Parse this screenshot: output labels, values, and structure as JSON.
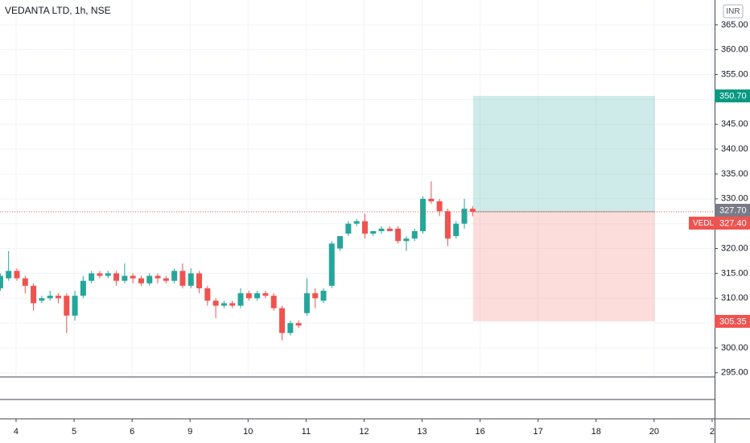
{
  "chart_data": {
    "type": "candlestick",
    "title": "VEDANTA LTD, 1h, NSE",
    "currency": "INR",
    "up_color": "#26a69a",
    "down_color": "#ef5350",
    "grid": true,
    "x": [
      -1,
      0,
      1,
      2,
      3,
      4,
      5,
      6,
      7,
      8,
      9,
      10,
      11,
      12,
      13,
      14,
      15,
      16,
      17,
      18,
      19,
      20,
      21,
      22,
      23,
      24,
      25,
      26,
      27,
      28,
      29,
      30,
      31,
      32,
      33,
      34,
      35,
      36,
      37,
      38,
      39,
      40,
      41,
      42,
      43,
      44,
      45,
      46,
      47,
      48,
      49,
      50,
      51,
      52,
      53,
      54,
      55,
      56
    ],
    "open": [
      312,
      314,
      315.5,
      314,
      312.5,
      309.5,
      310,
      310.5,
      310.5,
      306.5,
      310.5,
      313.5,
      315,
      314.5,
      315,
      313.5,
      314.5,
      314,
      313,
      314.5,
      314,
      313.5,
      315.5,
      312.5,
      315,
      312,
      309.5,
      308.5,
      309,
      308.5,
      311,
      310,
      311,
      310.5,
      308,
      303,
      305,
      307,
      311,
      309.5,
      312.5,
      320,
      323,
      325,
      325.5,
      323,
      323.5,
      324,
      324,
      321.5,
      322,
      323.5,
      330,
      329.5,
      327.5,
      322.5,
      325,
      328
    ],
    "high": [
      315,
      319.5,
      316,
      314.5,
      313,
      310.5,
      311.5,
      311,
      311,
      311.5,
      314.5,
      315.5,
      315.5,
      315.5,
      315.5,
      317,
      315,
      314.5,
      315,
      315,
      314.5,
      316,
      317,
      316,
      315.5,
      312.5,
      310,
      309.5,
      309.5,
      312,
      311.5,
      311.5,
      311.5,
      311,
      308.5,
      305.5,
      305.5,
      314,
      312,
      312,
      321.5,
      322.5,
      325.5,
      326,
      327,
      323.5,
      324.5,
      324.5,
      324.5,
      322.5,
      324,
      330.5,
      333.5,
      330,
      328,
      325.5,
      330,
      328.5
    ],
    "low": [
      311.5,
      313.5,
      313.5,
      311,
      307.5,
      309,
      309.5,
      309,
      303,
      305.5,
      310,
      313,
      314,
      314,
      312.5,
      313,
      313,
      312.5,
      312.5,
      313,
      313,
      313,
      312,
      312,
      311,
      308.5,
      306,
      308,
      308,
      308,
      309.5,
      309.5,
      310,
      307.5,
      301.5,
      302.5,
      304,
      306.5,
      308,
      309,
      312,
      319.5,
      322.5,
      324.5,
      322,
      322.5,
      323,
      323.5,
      321,
      319.5,
      321.5,
      323,
      329,
      326.5,
      320.5,
      322,
      324,
      326.5
    ],
    "close": [
      314.5,
      315.5,
      314,
      312.5,
      309,
      310,
      310.5,
      310,
      306.5,
      310.5,
      313.5,
      315,
      314.5,
      315,
      313.5,
      314.5,
      314,
      313,
      314.5,
      314,
      313.5,
      315.5,
      312.5,
      315,
      312,
      309.5,
      308.5,
      309,
      308.5,
      311,
      310,
      311,
      310.5,
      308,
      303,
      305,
      304.5,
      311,
      310,
      311.5,
      321,
      322.5,
      325,
      325.5,
      323,
      323.5,
      324,
      323.5,
      321.5,
      322,
      323.5,
      330,
      329.5,
      327.5,
      322,
      325,
      328,
      327.4
    ],
    "xlim": [
      -1.04,
      85.2
    ],
    "xticks": [
      {
        "value": 0.9,
        "label": "4"
      },
      {
        "value": 7.9,
        "label": "5"
      },
      {
        "value": 14.9,
        "label": "6"
      },
      {
        "value": 21.9,
        "label": "9"
      },
      {
        "value": 28.9,
        "label": "10"
      },
      {
        "value": 35.9,
        "label": "11"
      },
      {
        "value": 42.9,
        "label": "12"
      },
      {
        "value": 49.9,
        "label": "13"
      },
      {
        "value": 56.9,
        "label": "16"
      },
      {
        "value": 63.9,
        "label": "17"
      },
      {
        "value": 70.9,
        "label": "18"
      },
      {
        "value": 77.9,
        "label": "20"
      },
      {
        "value": 84.9,
        "label": "2"
      }
    ],
    "ylim": [
      294.16,
      370
    ],
    "yticks": [
      {
        "value": 295,
        "label": "295.00"
      },
      {
        "value": 300,
        "label": "300.00"
      },
      {
        "value": 305,
        "label": "305.00"
      },
      {
        "value": 310,
        "label": "310.00"
      },
      {
        "value": 315,
        "label": "315.00"
      },
      {
        "value": 320,
        "label": "320.00"
      },
      {
        "value": 325,
        "label": "325.00"
      },
      {
        "value": 330,
        "label": "330.00"
      },
      {
        "value": 335,
        "label": "335.00"
      },
      {
        "value": 340,
        "label": "340.00"
      },
      {
        "value": 345,
        "label": "345.00"
      },
      {
        "value": 350,
        "label": "350.00"
      },
      {
        "value": 355,
        "label": "355.00"
      },
      {
        "value": 360,
        "label": "360.00"
      },
      {
        "value": 365,
        "label": "365.00"
      }
    ],
    "position": {
      "entry": 327.4,
      "target": 350.7,
      "stop": 305.35,
      "x_start": 56.05,
      "x_end": 78.0
    },
    "price_labels": [
      {
        "value": 350.7,
        "label": "350.70",
        "color": "#089981"
      },
      {
        "value": 327.7,
        "label": "327.70",
        "color": "#787b86"
      },
      {
        "value": 327.4,
        "label": "327.40",
        "color": "#ef5350",
        "symbol": "VEDL"
      },
      {
        "value": 305.35,
        "label": "305.35",
        "color": "#ef5350"
      }
    ]
  }
}
